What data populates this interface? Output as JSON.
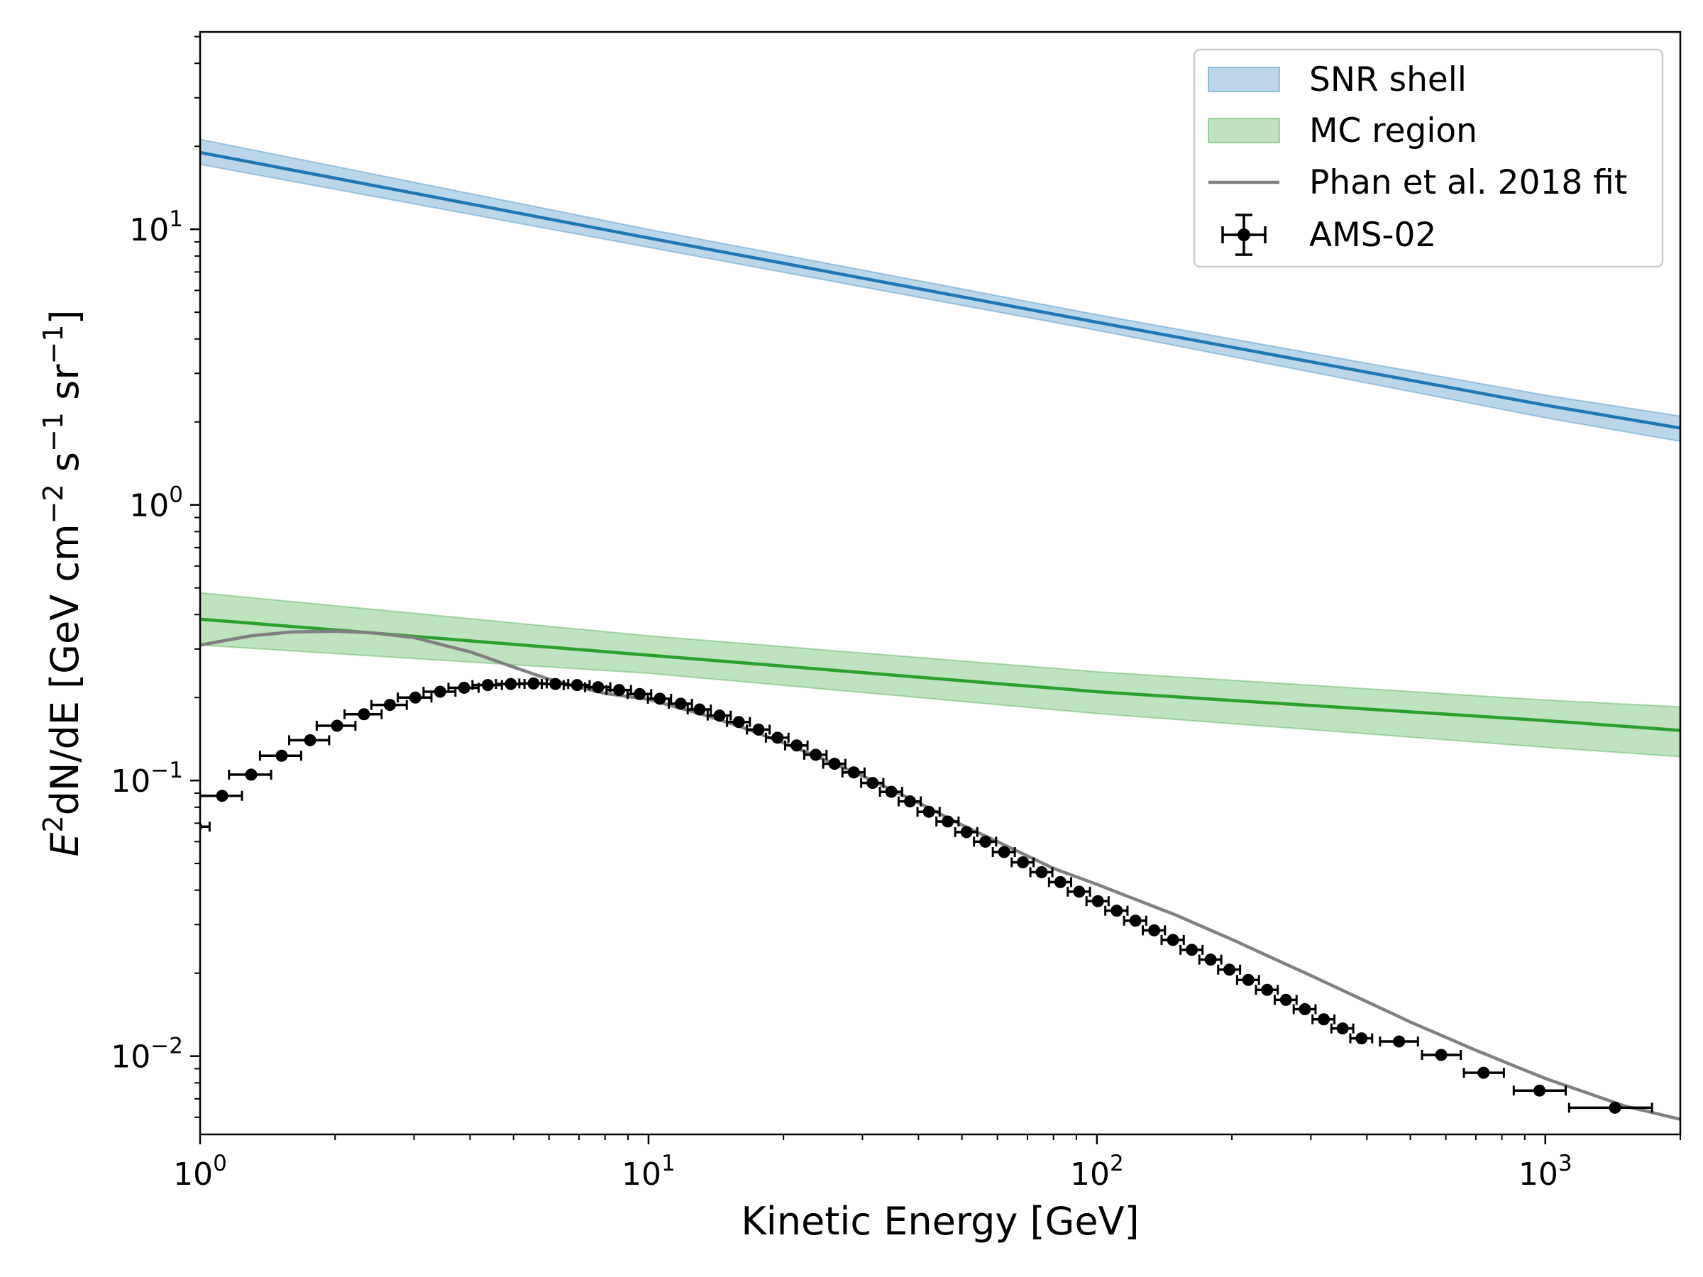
{
  "chart_data": {
    "type": "line",
    "xscale": "log",
    "yscale": "log",
    "xlim": [
      1,
      2000
    ],
    "ylim": [
      0.0052,
      52
    ],
    "xlabel": "Kinetic Energy [GeV]",
    "ylabel": {
      "base": "E",
      "sup2": "2",
      "mid": "dN/dE [GeV cm",
      "sup_cm": "−2",
      "s": " s",
      "sup_s": "−1",
      "sr": " sr",
      "sup_sr": "−1",
      "end": "]"
    },
    "x_ticks": [
      {
        "value": 1,
        "base": "10",
        "exp": "0"
      },
      {
        "value": 10,
        "base": "10",
        "exp": "1"
      },
      {
        "value": 100,
        "base": "10",
        "exp": "2"
      },
      {
        "value": 1000,
        "base": "10",
        "exp": "3"
      }
    ],
    "y_ticks": [
      {
        "value": 0.01,
        "base": "10",
        "exp": "−2"
      },
      {
        "value": 0.1,
        "base": "10",
        "exp": "−1"
      },
      {
        "value": 1,
        "base": "10",
        "exp": "0"
      },
      {
        "value": 10,
        "base": "10",
        "exp": "1"
      }
    ],
    "legend": {
      "position": "upper-right",
      "entries": [
        {
          "key": "snr",
          "label": "SNR shell",
          "kind": "band"
        },
        {
          "key": "mc",
          "label": "MC region",
          "kind": "band"
        },
        {
          "key": "phan",
          "label": "Phan et al. 2018 fit",
          "kind": "line"
        },
        {
          "key": "ams",
          "label": "AMS-02",
          "kind": "errorbar"
        }
      ]
    },
    "colors": {
      "snr_line": "#1f77b4",
      "snr_band": "#1f77b4",
      "mc_line": "#2ca02c",
      "mc_band": "#2ca02c",
      "phan_line": "#808080",
      "ams": "#000000"
    },
    "series": [
      {
        "name": "SNR shell",
        "kind": "band",
        "x": [
          1,
          10,
          100,
          1000,
          2000
        ],
        "y": [
          19.0,
          9.3,
          4.6,
          2.3,
          1.9
        ],
        "y_low": [
          17.2,
          8.6,
          4.3,
          2.07,
          1.7
        ],
        "y_high": [
          21.2,
          10.0,
          4.9,
          2.5,
          2.1
        ]
      },
      {
        "name": "MC region",
        "kind": "band",
        "x": [
          1,
          10,
          100,
          1000,
          2000
        ],
        "y": [
          0.385,
          0.285,
          0.21,
          0.165,
          0.152
        ],
        "y_low": [
          0.31,
          0.245,
          0.175,
          0.132,
          0.122
        ],
        "y_high": [
          0.48,
          0.335,
          0.248,
          0.196,
          0.185
        ]
      },
      {
        "name": "Phan et al. 2018 fit",
        "kind": "line",
        "x": [
          1,
          1.3,
          1.6,
          2.0,
          2.4,
          3.0,
          4.0,
          5.0,
          6.0,
          7.0,
          8.0,
          10,
          13,
          16,
          20,
          25,
          30,
          40,
          50,
          60,
          80,
          100,
          150,
          200,
          300,
          500,
          700,
          1000,
          1500,
          2000
        ],
        "y": [
          0.31,
          0.335,
          0.346,
          0.348,
          0.344,
          0.33,
          0.293,
          0.258,
          0.233,
          0.218,
          0.207,
          0.197,
          0.175,
          0.157,
          0.137,
          0.118,
          0.104,
          0.083,
          0.069,
          0.06,
          0.048,
          0.042,
          0.0325,
          0.0265,
          0.0196,
          0.0133,
          0.0105,
          0.0083,
          0.0066,
          0.0059
        ]
      },
      {
        "name": "AMS-02",
        "kind": "errorbar",
        "x": [
          0.98,
          1.12,
          1.3,
          1.52,
          1.76,
          2.02,
          2.32,
          2.65,
          3.02,
          3.43,
          3.88,
          4.38,
          4.93,
          5.54,
          6.2,
          6.93,
          7.72,
          8.6,
          9.56,
          10.6,
          11.8,
          13.0,
          14.4,
          15.9,
          17.6,
          19.4,
          21.4,
          23.6,
          26.0,
          28.7,
          31.6,
          34.8,
          38.3,
          42.2,
          46.5,
          51.2,
          56.4,
          62.1,
          68.4,
          75.3,
          82.9,
          91.3,
          100.5,
          110.7,
          121.9,
          134.2,
          147.8,
          162.8,
          179.3,
          197.5,
          217.6,
          239.7,
          264.0,
          291.0,
          320.6,
          353.2,
          389.2,
          471.9,
          585.9,
          728.3,
          970.4,
          1430.0
        ],
        "y": [
          0.068,
          0.088,
          0.105,
          0.123,
          0.14,
          0.158,
          0.174,
          0.188,
          0.2,
          0.21,
          0.217,
          0.222,
          0.224,
          0.225,
          0.224,
          0.222,
          0.218,
          0.213,
          0.206,
          0.198,
          0.19,
          0.181,
          0.172,
          0.163,
          0.153,
          0.143,
          0.134,
          0.124,
          0.115,
          0.107,
          0.098,
          0.091,
          0.084,
          0.077,
          0.071,
          0.065,
          0.06,
          0.055,
          0.0505,
          0.0465,
          0.0428,
          0.0395,
          0.0365,
          0.0337,
          0.031,
          0.0286,
          0.0264,
          0.0243,
          0.0224,
          0.0206,
          0.0189,
          0.0174,
          0.016,
          0.0148,
          0.0136,
          0.0126,
          0.0116,
          0.0113,
          0.0101,
          0.0087,
          0.0075,
          0.0065
        ],
        "x_err_low": [
          0.0,
          0.12,
          0.14,
          0.16,
          0.18,
          0.2,
          0.22,
          0.24,
          0.26,
          0.28,
          0.3,
          0.33,
          0.36,
          0.39,
          0.42,
          0.46,
          0.5,
          0.54,
          0.58,
          0.63,
          0.7,
          0.77,
          0.85,
          0.93,
          1.02,
          1.12,
          1.23,
          1.35,
          1.48,
          1.63,
          1.8,
          1.98,
          2.18,
          2.4,
          2.64,
          2.9,
          3.2,
          3.5,
          3.85,
          4.25,
          4.7,
          5.2,
          5.7,
          6.3,
          6.9,
          7.6,
          8.4,
          9.2,
          10.1,
          11.1,
          12.2,
          13.4,
          14.8,
          16.3,
          18.0,
          19.8,
          21.8,
          44,
          55,
          70,
          120,
          300
        ],
        "x_err_high": [
          0.07,
          0.12,
          0.14,
          0.16,
          0.18,
          0.2,
          0.22,
          0.24,
          0.26,
          0.28,
          0.3,
          0.33,
          0.36,
          0.39,
          0.42,
          0.46,
          0.5,
          0.54,
          0.58,
          0.63,
          0.7,
          0.77,
          0.85,
          0.93,
          1.02,
          1.12,
          1.23,
          1.35,
          1.48,
          1.63,
          1.8,
          1.98,
          2.18,
          2.4,
          2.64,
          2.9,
          3.2,
          3.5,
          3.85,
          4.25,
          4.7,
          5.2,
          5.7,
          6.3,
          6.9,
          7.6,
          8.4,
          9.2,
          10.1,
          11.1,
          12.2,
          13.4,
          14.8,
          16.3,
          18.0,
          19.8,
          21.8,
          48,
          62,
          80,
          140,
          300
        ]
      }
    ]
  }
}
